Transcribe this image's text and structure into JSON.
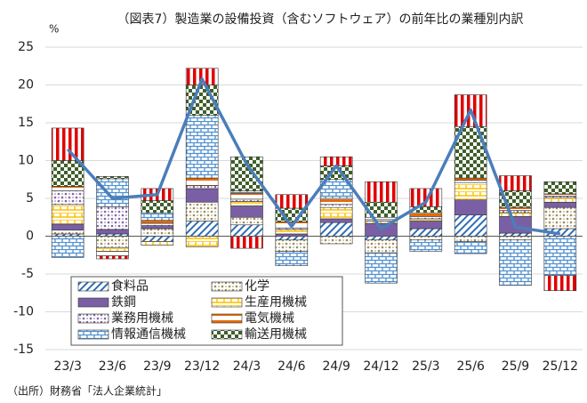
{
  "chart_data": {
    "type": "bar",
    "stacked": true,
    "title": "（図表7）製造業の設備投資（含むソフトウェア）の前年比の業種別内訳",
    "y_unit": "%",
    "source": "（出所）財務省「法人企業統計」",
    "categories": [
      "23/3",
      "23/6",
      "23/9",
      "23/12",
      "24/3",
      "24/6",
      "24/9",
      "24/12",
      "25/3",
      "25/6",
      "25/9",
      "25/12"
    ],
    "ylim": [
      -15,
      25
    ],
    "yticks": [
      -15,
      -10,
      -5,
      0,
      5,
      10,
      15,
      20,
      25
    ],
    "grid": true,
    "series": [
      {
        "name": "食料品",
        "color": "#2e6db4",
        "pattern": "diagonal",
        "values": [
          0.3,
          0.3,
          -0.7,
          2.0,
          1.5,
          -0.5,
          1.8,
          -0.5,
          1.0,
          2.8,
          0.4,
          1.0
        ]
      },
      {
        "name": "化学",
        "color": "#9c8c5c",
        "pattern": "dots",
        "values": [
          0.5,
          -1.5,
          1.0,
          2.5,
          1.0,
          -1.5,
          -1.0,
          -1.7,
          -0.5,
          -0.7,
          -0.5,
          2.8
        ]
      },
      {
        "name": "鉄鋼",
        "color": "#7b5fa5",
        "pattern": "solid",
        "values": [
          0.8,
          0.6,
          0.4,
          1.8,
          1.5,
          0.3,
          0.5,
          1.7,
          1.0,
          2.0,
          2.2,
          0.7
        ]
      },
      {
        "name": "生産用機械",
        "color": "#ffc000",
        "pattern": "grid",
        "values": [
          2.6,
          -0.5,
          -0.5,
          -1.4,
          0.6,
          0.6,
          1.5,
          0.3,
          0.3,
          2.3,
          0.5,
          0.6
        ]
      },
      {
        "name": "業務用機械",
        "color": "#8064a2",
        "pattern": "dots",
        "values": [
          1.8,
          3.0,
          0.3,
          0.4,
          0.3,
          0.2,
          0.4,
          0.2,
          0.3,
          0.3,
          0.3,
          0.2
        ]
      },
      {
        "name": "電気機械",
        "color": "#e46c0a",
        "pattern": "hlines",
        "values": [
          0.6,
          -0.6,
          0.4,
          1.0,
          0.8,
          0.8,
          0.8,
          0.3,
          0.5,
          0.3,
          0.4,
          0.3
        ]
      },
      {
        "name": "情報通信機械",
        "color": "#4f8fd0",
        "pattern": "brick",
        "values": [
          -2.8,
          3.7,
          1.0,
          8.3,
          0.3,
          -1.9,
          2.5,
          -4.0,
          -1.5,
          -1.6,
          -6.0,
          -5.2
        ]
      },
      {
        "name": "輸送用機械",
        "color": "#3f5f2a",
        "pattern": "checker",
        "values": [
          3.4,
          0.3,
          1.6,
          4.0,
          4.5,
          1.8,
          1.8,
          2.0,
          0.8,
          6.8,
          2.2,
          1.6
        ]
      },
      {
        "color": "#e00000",
        "pattern": "vlines",
        "values": [
          4.3,
          -0.4,
          1.6,
          2.2,
          -1.6,
          1.8,
          1.2,
          2.7,
          2.4,
          4.2,
          2.0,
          -2.0
        ]
      },
      {
        "type": "line",
        "color": "#4a7ebb",
        "values": [
          11.5,
          5.0,
          5.5,
          20.8,
          9.5,
          1.3,
          9.3,
          1.0,
          4.5,
          16.7,
          1.2,
          0.3
        ]
      }
    ]
  }
}
